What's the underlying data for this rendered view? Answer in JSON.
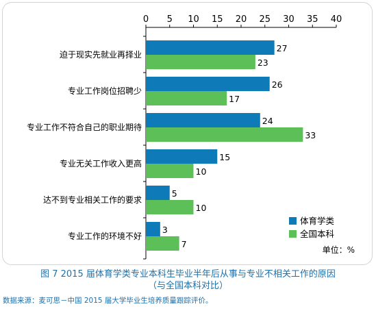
{
  "chart_data": {
    "type": "bar",
    "orientation": "horizontal",
    "categories": [
      "迫于现实先就业再择业",
      "专业工作岗位招聘少",
      "专业工作不符合自己的职业期待",
      "专业无关工作收入更高",
      "达不到专业相关工作的要求",
      "专业工作的环境不好"
    ],
    "series": [
      {
        "name": "体育学类",
        "color": "#0e7ab8",
        "values": [
          27,
          26,
          24,
          15,
          5,
          3
        ]
      },
      {
        "name": "全国本科",
        "color": "#5cbf58",
        "values": [
          23,
          17,
          33,
          10,
          10,
          7
        ]
      }
    ],
    "xticks": [
      0,
      5,
      10,
      15,
      20,
      25,
      30,
      35,
      40
    ],
    "xlim": [
      0,
      40
    ],
    "axis_position": "top",
    "legend_position": "bottom-right",
    "grid": false,
    "unit_label": "单位：%"
  },
  "caption": {
    "line1": "图 7  2015 届体育学类专业本科生毕业半年后从事与专业不相关工作的原因",
    "line2": "（与全国本科对比）"
  },
  "source_note": "数据来源：麦可思－中国 2015 届大学毕业生培养质量跟踪评价。"
}
